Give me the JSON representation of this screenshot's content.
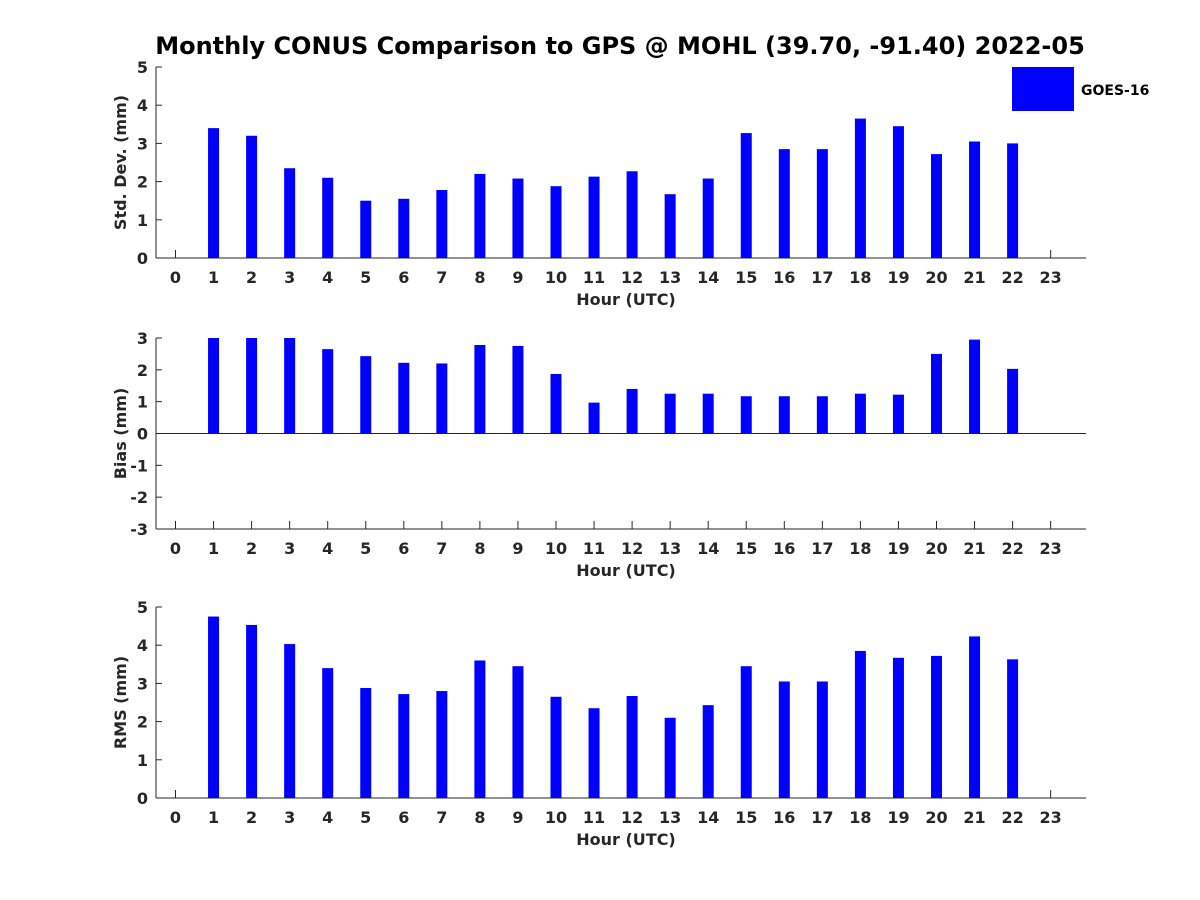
{
  "title": "Monthly CONUS Comparison to GPS @ MOHL (39.70, -91.40) 2022-05",
  "legend": {
    "label": "GOES-16",
    "placement": "top-right",
    "color": "#0000ff"
  },
  "chart_data": [
    {
      "type": "bar",
      "ylabel": "Std. Dev. (mm)",
      "xlabel": "Hour (UTC)",
      "ylim": [
        0,
        5
      ],
      "yticks": [
        "0",
        "1",
        "2",
        "3",
        "4",
        "5"
      ],
      "categories": [
        "0",
        "1",
        "2",
        "3",
        "4",
        "5",
        "6",
        "7",
        "8",
        "9",
        "10",
        "11",
        "12",
        "13",
        "14",
        "15",
        "16",
        "17",
        "18",
        "19",
        "20",
        "21",
        "22",
        "23"
      ],
      "series": [
        {
          "name": "GOES-16",
          "color": "#0000ff",
          "values": [
            null,
            3.4,
            3.2,
            2.35,
            2.1,
            1.5,
            1.55,
            1.78,
            2.2,
            2.08,
            1.88,
            2.13,
            2.27,
            1.67,
            2.08,
            3.27,
            2.85,
            2.85,
            3.65,
            3.45,
            2.72,
            3.05,
            3.0,
            null
          ]
        }
      ]
    },
    {
      "type": "bar",
      "ylabel": "Bias (mm)",
      "xlabel": "Hour (UTC)",
      "ylim": [
        -3,
        3
      ],
      "yticks": [
        "-3",
        "-2",
        "-1",
        "0",
        "1",
        "2",
        "3"
      ],
      "categories": [
        "0",
        "1",
        "2",
        "3",
        "4",
        "5",
        "6",
        "7",
        "8",
        "9",
        "10",
        "11",
        "12",
        "13",
        "14",
        "15",
        "16",
        "17",
        "18",
        "19",
        "20",
        "21",
        "22",
        "23"
      ],
      "series": [
        {
          "name": "GOES-16",
          "color": "#0000ff",
          "values": [
            null,
            3.0,
            3.0,
            3.0,
            2.65,
            2.43,
            2.22,
            2.2,
            2.78,
            2.75,
            1.87,
            0.97,
            1.4,
            1.25,
            1.25,
            1.17,
            1.17,
            1.17,
            1.25,
            1.22,
            2.5,
            2.95,
            2.03,
            null
          ]
        }
      ]
    },
    {
      "type": "bar",
      "ylabel": "RMS (mm)",
      "xlabel": "Hour (UTC)",
      "ylim": [
        0,
        5
      ],
      "yticks": [
        "0",
        "1",
        "2",
        "3",
        "4",
        "5"
      ],
      "categories": [
        "0",
        "1",
        "2",
        "3",
        "4",
        "5",
        "6",
        "7",
        "8",
        "9",
        "10",
        "11",
        "12",
        "13",
        "14",
        "15",
        "16",
        "17",
        "18",
        "19",
        "20",
        "21",
        "22",
        "23"
      ],
      "series": [
        {
          "name": "GOES-16",
          "color": "#0000ff",
          "values": [
            null,
            4.75,
            4.53,
            4.03,
            3.4,
            2.88,
            2.72,
            2.8,
            3.6,
            3.45,
            2.65,
            2.35,
            2.67,
            2.1,
            2.43,
            3.45,
            3.05,
            3.05,
            3.85,
            3.67,
            3.72,
            4.23,
            3.63,
            null
          ]
        }
      ]
    }
  ]
}
